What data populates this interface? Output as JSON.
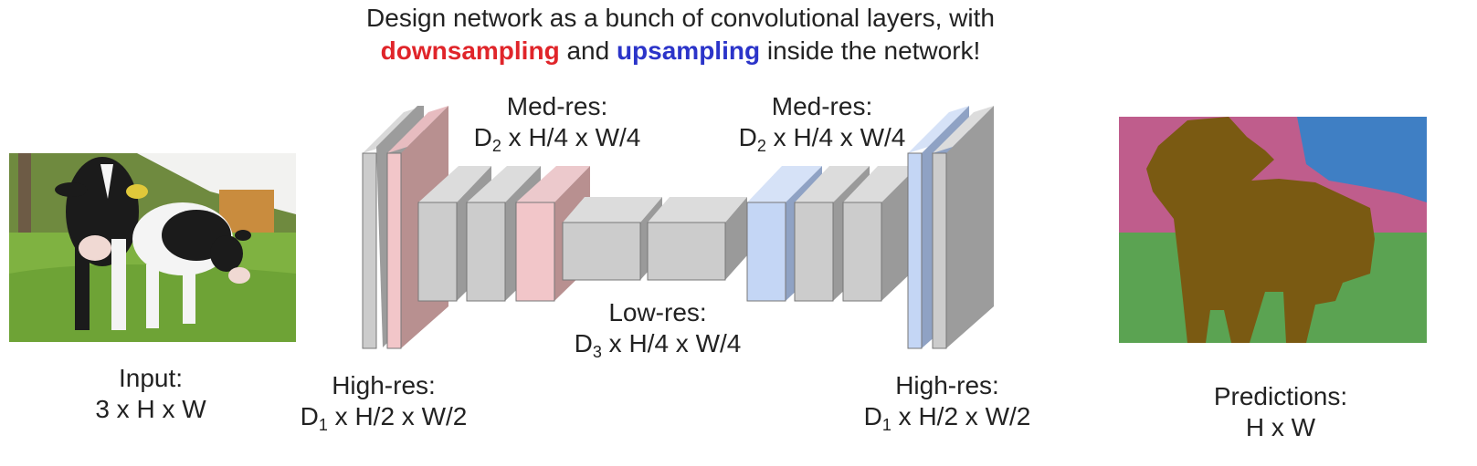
{
  "title": {
    "line1": "Design network as a bunch of convolutional layers, with",
    "down": "downsampling",
    "and": "and",
    "up": "upsampling",
    "rest": "inside the network!"
  },
  "labels": {
    "input": {
      "line1": "Input:",
      "line2": "3 x H x W"
    },
    "high_res_left": {
      "line1": "High-res:",
      "sym": "D",
      "sub": "1",
      "rest": " x H/2 x W/2"
    },
    "med_res_left": {
      "line1": "Med-res:",
      "sym": "D",
      "sub": "2",
      "rest": " x H/4 x W/4"
    },
    "low_res": {
      "line1": "Low-res:",
      "sym": "D",
      "sub": "3",
      "rest": " x H/4 x W/4"
    },
    "med_res_right": {
      "line1": "Med-res:",
      "sym": "D",
      "sub": "2",
      "rest": " x H/4 x W/4"
    },
    "high_res_right": {
      "line1": "High-res:",
      "sym": "D",
      "sub": "1",
      "rest": " x H/2 x W/2"
    },
    "predictions": {
      "line1": "Predictions:",
      "line2": "H x W"
    }
  },
  "colors": {
    "downsample_text": "#e0252a",
    "upsample_text": "#2b34c9",
    "gray_block": "#cccccc",
    "pink_block": "#f2c6c9",
    "blue_block": "#c4d6f5",
    "seg_cow": "#7a5a12",
    "seg_grass": "#5ba352",
    "seg_tree": "#bf5d8c",
    "seg_sky": "#3f7fc4"
  }
}
